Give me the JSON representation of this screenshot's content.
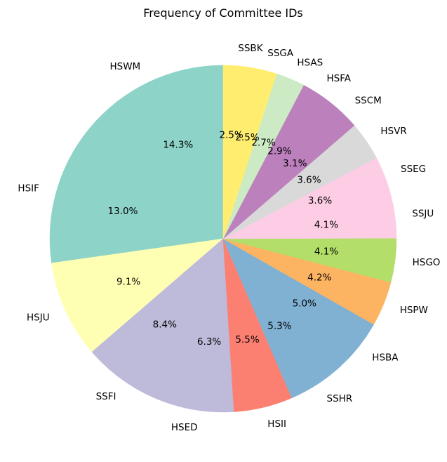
{
  "chart_data": {
    "type": "pie",
    "title": "Frequency of Committee IDs",
    "start_angle_deg": 90,
    "direction": "counterclockwise",
    "slices": [
      {
        "label": "HSWM",
        "value": 14.3,
        "pct_label": "14.3%",
        "color": "#8dd3c7"
      },
      {
        "label": "HSIF",
        "value": 13.0,
        "pct_label": "13.0%",
        "color": "#8dd3c7"
      },
      {
        "label": "HSJU",
        "value": 9.1,
        "pct_label": "9.1%",
        "color": "#ffffb3"
      },
      {
        "label": "SSFI",
        "value": 8.4,
        "pct_label": "8.4%",
        "color": "#bebada"
      },
      {
        "label": "HSED",
        "value": 6.3,
        "pct_label": "6.3%",
        "color": "#bebada"
      },
      {
        "label": "HSII",
        "value": 5.5,
        "pct_label": "5.5%",
        "color": "#fb8072"
      },
      {
        "label": "SSHR",
        "value": 5.3,
        "pct_label": "5.3%",
        "color": "#80b1d3"
      },
      {
        "label": "HSBA",
        "value": 5.0,
        "pct_label": "5.0%",
        "color": "#80b1d3"
      },
      {
        "label": "HSPW",
        "value": 4.2,
        "pct_label": "4.2%",
        "color": "#fdb462"
      },
      {
        "label": "HSGO",
        "value": 4.1,
        "pct_label": "4.1%",
        "color": "#b3de69"
      },
      {
        "label": "SSJU",
        "value": 4.1,
        "pct_label": "4.1%",
        "color": "#fccde5"
      },
      {
        "label": "SSEG",
        "value": 3.6,
        "pct_label": "3.6%",
        "color": "#fccde5"
      },
      {
        "label": "HSVR",
        "value": 3.6,
        "pct_label": "3.6%",
        "color": "#d9d9d9"
      },
      {
        "label": "SSCM",
        "value": 3.1,
        "pct_label": "3.1%",
        "color": "#bc80bd"
      },
      {
        "label": "HSFA",
        "value": 2.9,
        "pct_label": "2.9%",
        "color": "#bc80bd"
      },
      {
        "label": "HSAS",
        "value": 2.7,
        "pct_label": "2.7%",
        "color": "#ccebc5"
      },
      {
        "label": "SSGA",
        "value": 2.5,
        "pct_label": "2.5%",
        "color": "#ffed6f"
      },
      {
        "label": "SSBK",
        "value": 2.5,
        "pct_label": "2.5%",
        "color": "#ffed6f"
      }
    ]
  }
}
